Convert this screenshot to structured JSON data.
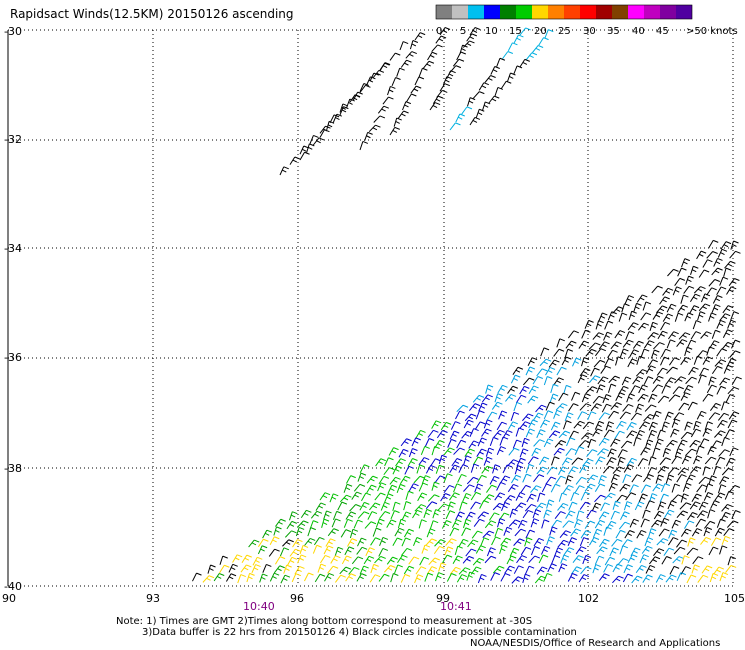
{
  "title": "Rapidsact Winds(12.5KM) 20150126 ascending",
  "legend": {
    "colors": [
      "#808080",
      "#c0c0c0",
      "#00c0f0",
      "#0000ff",
      "#008000",
      "#00cc00",
      "#ffd700",
      "#ff8000",
      "#ff4000",
      "#ff0000",
      "#a00000",
      "#804000",
      "#ff00ff",
      "#c000c0",
      "#8000a0",
      "#5000a0"
    ],
    "labels": [
      "0",
      "5",
      "10",
      "15",
      "20",
      "25",
      "30",
      "35",
      "40",
      "45",
      ">50 knots"
    ]
  },
  "axes": {
    "y_labels": [
      "-30",
      "-32",
      "-34",
      "-36",
      "-38",
      "-40"
    ],
    "x_labels": [
      "90",
      "93",
      "96",
      "99",
      "102",
      "105"
    ]
  },
  "times": [
    "10:40",
    "10:41"
  ],
  "notes": {
    "line1": "Note: 1) Times are GMT 2)Times along bottom correspond to measurement at -30S",
    "line2": "3)Data buffer is 22 hrs from 20150126 4) Black circles indicate possible contamination",
    "line3": "NOAA/NESDIS/Office of Research and Applications"
  }
}
